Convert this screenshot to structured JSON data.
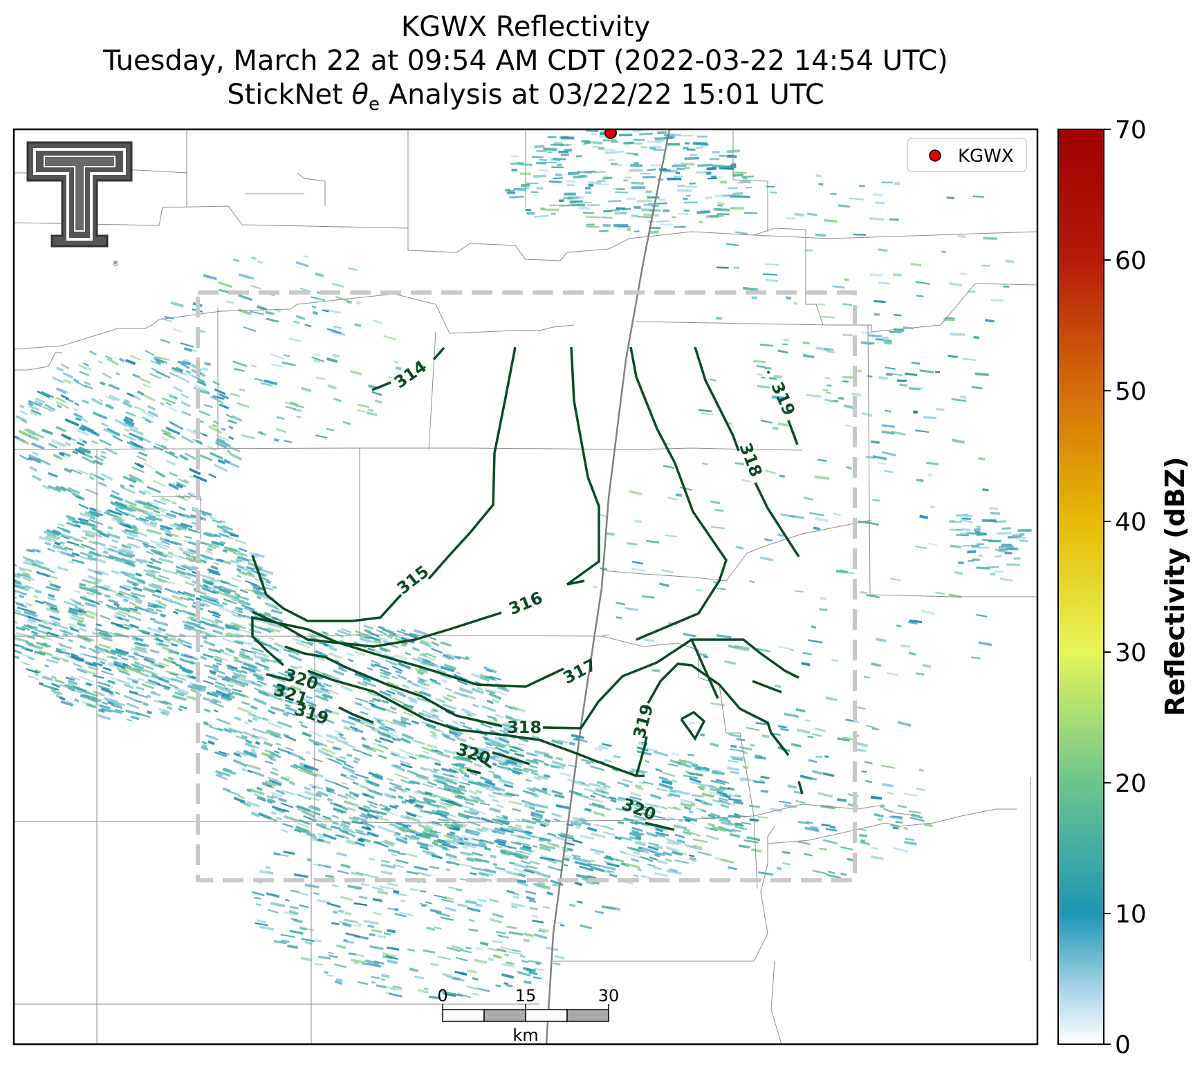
{
  "title": {
    "line1": "KGWX Reflectivity",
    "line2": "Tuesday, March 22 at 09:54 AM CDT (2022-03-22 14:54 UTC)",
    "line3_prefix": "StickNet ",
    "line3_symbol": "θ",
    "line3_subscript": "e",
    "line3_suffix": " Analysis at 03/22/22 15:01 UTC"
  },
  "legend": {
    "label": "KGWX",
    "marker_color": "#e00000"
  },
  "colorbar": {
    "label": "Reflectivity (dBZ)",
    "ticks": [
      "0",
      "10",
      "20",
      "30",
      "40",
      "50",
      "60",
      "70"
    ],
    "range": [
      0,
      70
    ],
    "colors": [
      "#ffffff",
      "#1e96b4",
      "#6cc48e",
      "#e6f55a",
      "#e6bb05",
      "#d46a0a",
      "#b51a0a",
      "#a00000"
    ]
  },
  "scale_bar": {
    "ticks": [
      "0",
      "15",
      "30"
    ],
    "unit": "km"
  },
  "contours": {
    "color": "#0b4a23",
    "labels": [
      "314",
      "315",
      "316",
      "317",
      "318",
      "319",
      "320",
      "321",
      "319",
      "320",
      "320",
      "319",
      "318",
      "319"
    ]
  },
  "logo": {
    "letters": "TT",
    "mark": "®"
  }
}
